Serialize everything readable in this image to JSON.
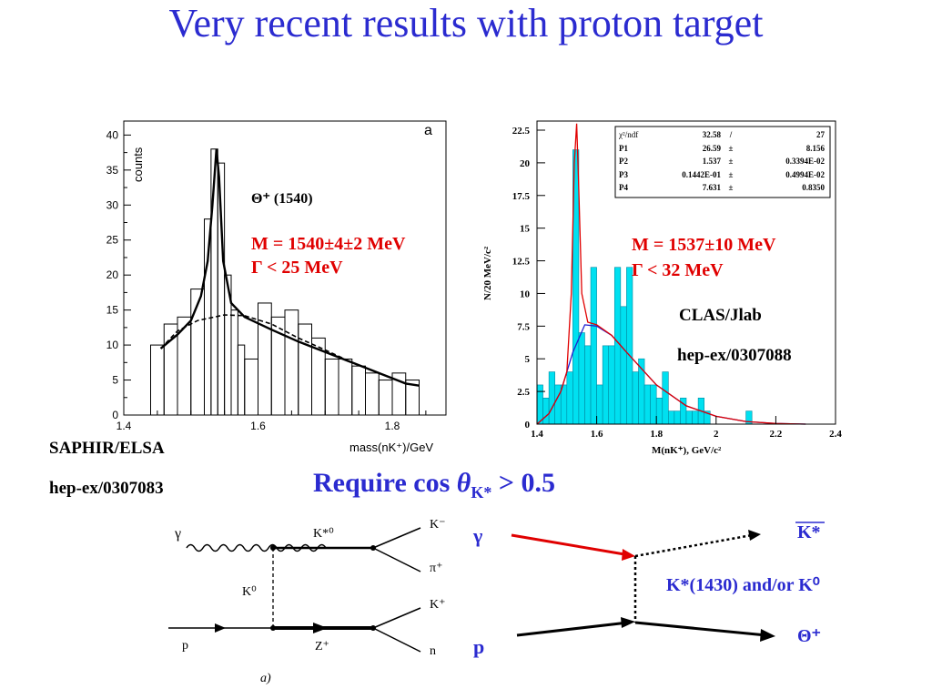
{
  "title": "Very recent results with proton target",
  "left_plot": {
    "corner_label": "a",
    "y_axis_label": "counts",
    "x_axis_label": "mass(nK⁺)/GeV",
    "peak_label": "Θ⁺ (1540)",
    "mass_line": "M = 1540±4±2 MeV",
    "width_line": "Γ < 25 MeV",
    "experiment": "SAPHIR/ELSA",
    "reference": "hep-ex/0307083",
    "y_ticks": [
      "0",
      "5",
      "10",
      "15",
      "20",
      "25",
      "30",
      "35",
      "40"
    ],
    "x_ticks": [
      "1.4",
      "1.6",
      "1.8"
    ]
  },
  "right_plot": {
    "y_axis_label": "N/20 MeV/c²",
    "x_axis_label": "M(nK⁺), GeV/c²",
    "mass_line": "M = 1537±10 MeV",
    "width_line": "Γ < 32 MeV",
    "experiment": "CLAS/Jlab",
    "reference": "hep-ex/0307088",
    "y_ticks": [
      "0",
      "2.5",
      "5",
      "7.5",
      "10",
      "12.5",
      "15",
      "17.5",
      "20",
      "22.5"
    ],
    "x_ticks": [
      "1.4",
      "1.6",
      "1.8",
      "2",
      "2.2",
      "2.4"
    ],
    "fit_table": [
      {
        "name": "χ²/ndf",
        "value": "32.58",
        "sep": "/",
        "error": "27"
      },
      {
        "name": "P1",
        "value": "26.59",
        "sep": "±",
        "error": "8.156"
      },
      {
        "name": "P2",
        "value": "1.537",
        "sep": "±",
        "error": "0.3394E-02"
      },
      {
        "name": "P3",
        "value": "0.1442E-01",
        "sep": "±",
        "error": "0.4994E-02"
      },
      {
        "name": "P4",
        "value": "7.631",
        "sep": "±",
        "error": "0.8350"
      }
    ]
  },
  "cut_label": {
    "prefix": "Require cos ",
    "theta": "θ",
    "subscript": "K*",
    "suffix": " > 0.5"
  },
  "feynman": {
    "gamma": "γ",
    "kstar0": "K*⁰",
    "kminus": "K⁻",
    "piplus": "π⁺",
    "k0": "K⁰",
    "kplus": "K⁺",
    "proton": "p",
    "zplus": "Z⁺",
    "neutron": "n",
    "caption": "a)"
  },
  "kinematic": {
    "gamma": "γ",
    "proton": "p",
    "kstar_bar": "K*",
    "exchange": "K*(1430) and/or K⁰",
    "theta": "Θ⁺"
  },
  "colors": {
    "title_blue": "#2b2bd0",
    "red": "#e00000",
    "hist_fill": "#00e0f0",
    "fit_blue": "#2020d0"
  },
  "chart_data": [
    {
      "type": "bar",
      "experiment": "SAPHIR/ELSA",
      "xlabel": "mass(nK⁺)/GeV",
      "ylabel": "counts",
      "xlim": [
        1.4,
        1.88
      ],
      "ylim": [
        0,
        42
      ],
      "bin_edges": [
        1.44,
        1.46,
        1.48,
        1.5,
        1.52,
        1.53,
        1.54,
        1.55,
        1.56,
        1.57,
        1.58,
        1.6,
        1.62,
        1.64,
        1.66,
        1.68,
        1.7,
        1.72,
        1.74,
        1.76,
        1.78,
        1.8,
        1.82,
        1.84
      ],
      "values": [
        10,
        13,
        14,
        18,
        28,
        38,
        36,
        20,
        15,
        10,
        8,
        16,
        14,
        15,
        13,
        11,
        8,
        8,
        7,
        6,
        5,
        6,
        5
      ],
      "fit_total": [
        [
          1.455,
          9.5
        ],
        [
          1.48,
          11.5
        ],
        [
          1.5,
          13.5
        ],
        [
          1.515,
          17
        ],
        [
          1.525,
          22
        ],
        [
          1.532,
          30
        ],
        [
          1.538,
          38
        ],
        [
          1.542,
          34
        ],
        [
          1.548,
          22
        ],
        [
          1.56,
          16
        ],
        [
          1.58,
          14
        ],
        [
          1.62,
          12.2
        ],
        [
          1.66,
          10.5
        ],
        [
          1.7,
          9
        ],
        [
          1.74,
          7.5
        ],
        [
          1.78,
          6
        ],
        [
          1.82,
          4.5
        ],
        [
          1.84,
          4.2
        ]
      ],
      "fit_background": [
        [
          1.455,
          9.5
        ],
        [
          1.48,
          12
        ],
        [
          1.51,
          13.5
        ],
        [
          1.55,
          14.3
        ],
        [
          1.58,
          14.2
        ],
        [
          1.62,
          13
        ],
        [
          1.66,
          11
        ],
        [
          1.7,
          9.3
        ],
        [
          1.74,
          7.5
        ],
        [
          1.78,
          6
        ],
        [
          1.82,
          4.5
        ],
        [
          1.84,
          4.2
        ]
      ]
    },
    {
      "type": "bar",
      "experiment": "CLAS/Jlab",
      "xlabel": "M(nK⁺), GeV/c²",
      "ylabel": "N/20 MeV/c²",
      "xlim": [
        1.4,
        2.4
      ],
      "ylim": [
        0,
        22.5
      ],
      "bin_edges": [
        1.4,
        1.42,
        1.44,
        1.46,
        1.48,
        1.5,
        1.52,
        1.54,
        1.56,
        1.58,
        1.6,
        1.62,
        1.64,
        1.66,
        1.68,
        1.7,
        1.72,
        1.74,
        1.76,
        1.78,
        1.8,
        1.82,
        1.84,
        1.86,
        1.88,
        1.9,
        1.92,
        1.94,
        1.96,
        1.98,
        2.0,
        2.02,
        2.04,
        2.06,
        2.08,
        2.1,
        2.12
      ],
      "values": [
        3,
        2,
        4,
        3,
        3,
        4,
        21,
        7,
        6,
        12,
        3,
        6,
        6,
        12,
        9,
        12,
        4,
        5,
        3,
        3,
        2,
        4,
        1,
        1,
        2,
        1,
        1,
        2,
        1,
        0,
        0,
        0,
        0,
        0,
        0,
        1
      ],
      "fit_total": [
        [
          1.4,
          0
        ],
        [
          1.44,
          0.8
        ],
        [
          1.48,
          2.5
        ],
        [
          1.5,
          4
        ],
        [
          1.515,
          10
        ],
        [
          1.525,
          20
        ],
        [
          1.533,
          23
        ],
        [
          1.54,
          18
        ],
        [
          1.55,
          10
        ],
        [
          1.57,
          7.8
        ],
        [
          1.6,
          7.6
        ],
        [
          1.65,
          6.8
        ],
        [
          1.7,
          5.5
        ],
        [
          1.8,
          3
        ],
        [
          1.9,
          1.4
        ],
        [
          2.0,
          0.6
        ],
        [
          2.1,
          0.2
        ],
        [
          2.2,
          0.05
        ],
        [
          2.3,
          0
        ]
      ],
      "fit_background": [
        [
          1.4,
          0
        ],
        [
          1.44,
          0.8
        ],
        [
          1.48,
          2.5
        ],
        [
          1.52,
          5.5
        ],
        [
          1.56,
          7.6
        ],
        [
          1.6,
          7.5
        ],
        [
          1.65,
          6.8
        ],
        [
          1.7,
          5.5
        ],
        [
          1.8,
          3
        ],
        [
          1.9,
          1.4
        ],
        [
          2.0,
          0.6
        ],
        [
          2.1,
          0.2
        ],
        [
          2.2,
          0.05
        ],
        [
          2.3,
          0
        ]
      ]
    }
  ]
}
